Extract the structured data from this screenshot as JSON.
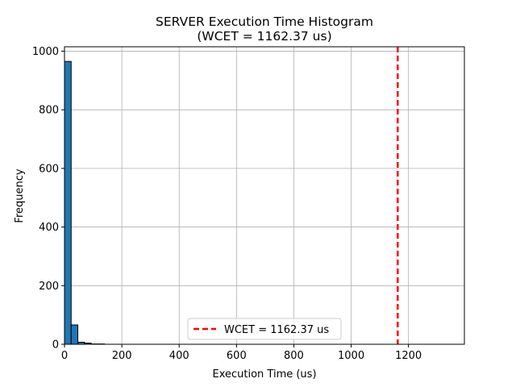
{
  "chart_data": {
    "type": "bar",
    "title_line1": "SERVER Execution Time Histogram",
    "title_line2": "(WCET = 1162.37 us)",
    "xlabel": "Execution Time (us)",
    "ylabel": "Frequency",
    "xlim": [
      0,
      1395
    ],
    "ylim": [
      0,
      1015
    ],
    "xticks": [
      0,
      200,
      400,
      600,
      800,
      1000,
      1200
    ],
    "yticks": [
      0,
      200,
      400,
      600,
      800,
      1000
    ],
    "grid": true,
    "bar_color": "#1f77b4",
    "bar_edge_color": "#000000",
    "bins": [
      {
        "start": 0,
        "end": 23.25,
        "count": 965
      },
      {
        "start": 23.25,
        "end": 46.5,
        "count": 66
      },
      {
        "start": 46.5,
        "end": 69.75,
        "count": 7
      },
      {
        "start": 69.75,
        "end": 93.0,
        "count": 4
      },
      {
        "start": 93.0,
        "end": 116.25,
        "count": 1
      },
      {
        "start": 116.25,
        "end": 139.5,
        "count": 1
      }
    ],
    "wcet": {
      "value": 1162.37,
      "color": "#ff0000",
      "label": "WCET = 1162.37 us"
    },
    "legend_position": "lower-center"
  }
}
